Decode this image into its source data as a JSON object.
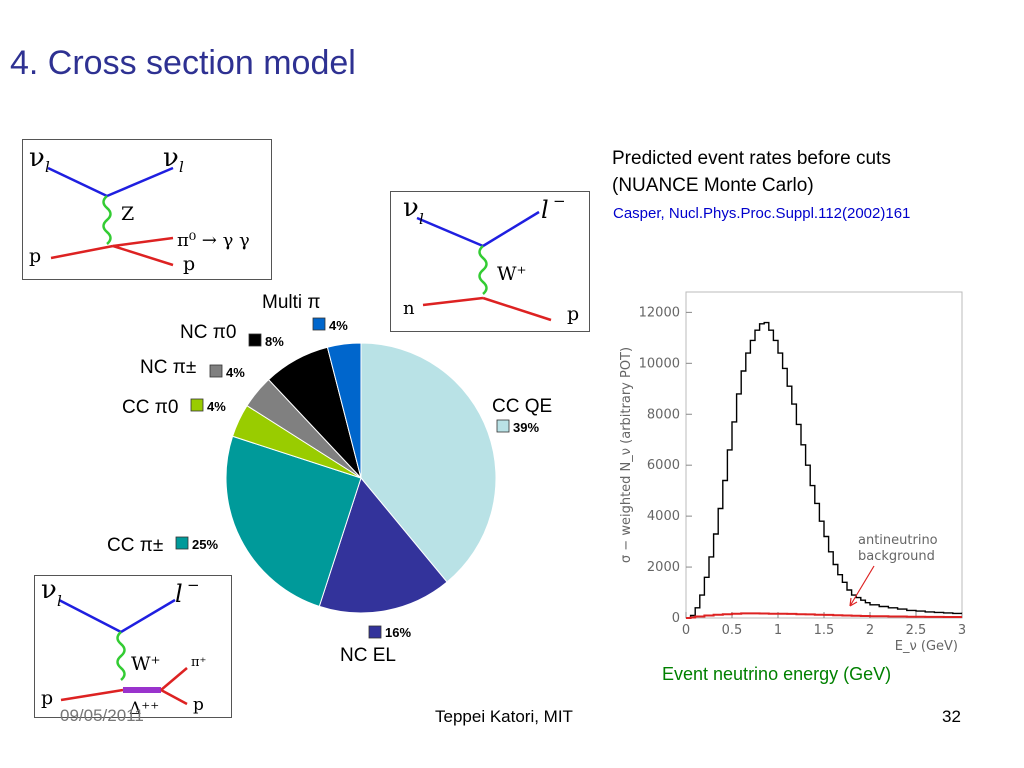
{
  "slide": {
    "title": "4. Cross section model",
    "footer_author": "Teppei Katori, MIT",
    "footer_page": "32",
    "footer_date": "09/05/2011"
  },
  "right_panel": {
    "caption_line1": "Predicted event rates before cuts",
    "caption_line2": "(NUANCE Monte Carlo)",
    "citation": "Casper, Nucl.Phys.Proc.Suppl.112(2002)161",
    "energy_caption": "Event neutrino energy (GeV)"
  },
  "diagrams": {
    "nc_pi0": {
      "nu_in": "ν",
      "nu_in_sub": "l",
      "nu_out": "ν",
      "nu_out_sub": "l",
      "boson": "Z",
      "p_in": "p",
      "p_out": "p",
      "decay": "π⁰ → γ γ"
    },
    "ccqe": {
      "nu_in": "ν",
      "nu_in_sub": "l",
      "lepton": "l",
      "lepton_sup": "−",
      "boson": "W⁺",
      "n_in": "n",
      "p_out": "p"
    },
    "cc_pi": {
      "nu_in": "ν",
      "nu_in_sub": "l",
      "lepton": "l",
      "lepton_sup": "−",
      "boson": "W⁺",
      "p_in": "p",
      "resonance": "Δ⁺⁺",
      "pi_out": "π⁺",
      "p_out": "p"
    }
  },
  "chart_data": [
    {
      "type": "pie",
      "categories": [
        "CC QE",
        "NC EL",
        "CC π±",
        "CC π0",
        "NC π±",
        "NC π0",
        "Multi π"
      ],
      "labels": [
        {
          "name": "CC QE",
          "pct": "39%"
        },
        {
          "name": "NC EL",
          "pct": "16%"
        },
        {
          "name": "CC π±",
          "pct": "25%"
        },
        {
          "name": "CC π0",
          "pct": "4%"
        },
        {
          "name": "NC π±",
          "pct": "4%"
        },
        {
          "name": "NC π0",
          "pct": "8%"
        },
        {
          "name": "Multi π",
          "pct": "4%"
        }
      ],
      "values": [
        39,
        16,
        25,
        4,
        4,
        8,
        4
      ],
      "colors": [
        "#b9e2e6",
        "#33339b",
        "#009a9a",
        "#99cc00",
        "#808080",
        "#000000",
        "#0066cc"
      ]
    },
    {
      "type": "line",
      "ylabel": "σ − weighted N_ν (arbitrary POT)",
      "xlabel": "E_ν (GeV)",
      "xlim": [
        0,
        3
      ],
      "ylim": [
        0,
        12800
      ],
      "xticks": [
        "0",
        "0.5",
        "1",
        "1.5",
        "2",
        "2.5",
        "3"
      ],
      "yticks": [
        "0",
        "2000",
        "4000",
        "6000",
        "8000",
        "10000",
        "12000"
      ],
      "annotation": "antineutrino background",
      "annotation_line1": "antineutrino",
      "annotation_line2": "background",
      "series": [
        {
          "color": "#000000",
          "x": [
            0.05,
            0.1,
            0.15,
            0.2,
            0.25,
            0.3,
            0.35,
            0.4,
            0.45,
            0.5,
            0.55,
            0.6,
            0.65,
            0.7,
            0.75,
            0.8,
            0.85,
            0.9,
            0.95,
            1.0,
            1.05,
            1.1,
            1.15,
            1.2,
            1.25,
            1.3,
            1.35,
            1.4,
            1.45,
            1.5,
            1.55,
            1.6,
            1.65,
            1.7,
            1.75,
            1.8,
            1.85,
            1.9,
            1.95,
            2.0,
            2.1,
            2.2,
            2.3,
            2.4,
            2.5,
            2.6,
            2.7,
            2.8,
            2.9,
            3.0
          ],
          "y": [
            0,
            100,
            400,
            900,
            1600,
            2400,
            3300,
            4300,
            5400,
            6600,
            7700,
            8800,
            9700,
            10400,
            10900,
            11300,
            11550,
            11600,
            11300,
            10900,
            10400,
            9800,
            9100,
            8400,
            7600,
            6800,
            6000,
            5200,
            4500,
            3800,
            3200,
            2600,
            2100,
            1700,
            1400,
            1100,
            900,
            800,
            700,
            600,
            520,
            450,
            400,
            350,
            300,
            270,
            240,
            220,
            200,
            180
          ]
        },
        {
          "name": "antineutrino background",
          "color": "#dd2222",
          "x": [
            0.05,
            0.1,
            0.2,
            0.3,
            0.4,
            0.5,
            0.6,
            0.7,
            0.8,
            0.9,
            1.0,
            1.1,
            1.2,
            1.3,
            1.4,
            1.5,
            1.6,
            1.7,
            1.8,
            1.9,
            2.0,
            2.2,
            2.4,
            2.6,
            2.8,
            3.0
          ],
          "y": [
            0,
            20,
            60,
            100,
            130,
            150,
            170,
            180,
            180,
            175,
            170,
            165,
            160,
            150,
            140,
            130,
            120,
            110,
            100,
            90,
            80,
            70,
            60,
            50,
            45,
            40
          ]
        }
      ]
    }
  ]
}
